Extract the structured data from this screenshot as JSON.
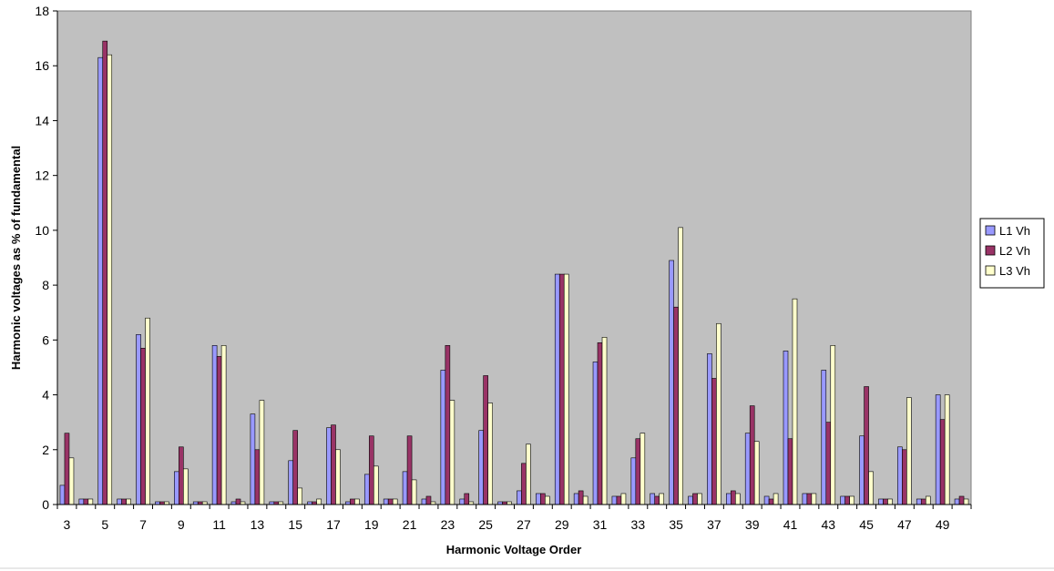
{
  "chart_data": {
    "type": "bar",
    "title": "",
    "xlabel": "Harmonic Voltage Order",
    "ylabel": "Harmonic voltages as % of fundamental",
    "ylim": [
      0,
      18
    ],
    "yticks": [
      0,
      2,
      4,
      6,
      8,
      10,
      12,
      14,
      16,
      18
    ],
    "grid": false,
    "legend_position": "right",
    "plot_background": "#c0c0c0",
    "categories": [
      3,
      4,
      5,
      6,
      7,
      8,
      9,
      10,
      11,
      12,
      13,
      14,
      15,
      16,
      17,
      18,
      19,
      20,
      21,
      22,
      23,
      24,
      25,
      26,
      27,
      28,
      29,
      30,
      31,
      32,
      33,
      34,
      35,
      36,
      37,
      38,
      39,
      40,
      41,
      42,
      43,
      44,
      45,
      46,
      47,
      48,
      49,
      50
    ],
    "x_tick_labels": [
      "3",
      "5",
      "7",
      "9",
      "11",
      "13",
      "15",
      "17",
      "19",
      "21",
      "23",
      "25",
      "27",
      "29",
      "31",
      "33",
      "35",
      "37",
      "39",
      "41",
      "43",
      "45",
      "47",
      "49"
    ],
    "series": [
      {
        "name": "L1 Vh",
        "color": "#9999ff",
        "values": [
          0.7,
          0.2,
          16.3,
          0.2,
          6.2,
          0.1,
          1.2,
          0.1,
          5.8,
          0.1,
          3.3,
          0.1,
          1.6,
          0.1,
          2.8,
          0.1,
          1.1,
          0.2,
          1.2,
          0.2,
          4.9,
          0.2,
          2.7,
          0.1,
          0.5,
          0.4,
          8.4,
          0.4,
          5.2,
          0.3,
          1.7,
          0.4,
          8.9,
          0.3,
          5.5,
          0.4,
          2.6,
          0.3,
          5.6,
          0.4,
          4.9,
          0.3,
          2.5,
          0.2,
          2.1,
          0.2,
          4.0,
          0.2
        ]
      },
      {
        "name": "L2 Vh",
        "color": "#993366",
        "values": [
          2.6,
          0.2,
          16.9,
          0.2,
          5.7,
          0.1,
          2.1,
          0.1,
          5.4,
          0.2,
          2.0,
          0.1,
          2.7,
          0.1,
          2.9,
          0.2,
          2.5,
          0.2,
          2.5,
          0.3,
          5.8,
          0.4,
          4.7,
          0.1,
          1.5,
          0.4,
          8.4,
          0.5,
          5.9,
          0.3,
          2.4,
          0.3,
          7.2,
          0.4,
          4.6,
          0.5,
          3.6,
          0.2,
          2.4,
          0.4,
          3.0,
          0.3,
          4.3,
          0.2,
          2.0,
          0.2,
          3.1,
          0.3
        ]
      },
      {
        "name": "L3 Vh",
        "color": "#ffffcc",
        "values": [
          1.7,
          0.2,
          16.4,
          0.2,
          6.8,
          0.1,
          1.3,
          0.1,
          5.8,
          0.1,
          3.8,
          0.1,
          0.6,
          0.2,
          2.0,
          0.2,
          1.4,
          0.2,
          0.9,
          0.1,
          3.8,
          0.1,
          3.7,
          0.1,
          2.2,
          0.3,
          8.4,
          0.3,
          6.1,
          0.4,
          2.6,
          0.4,
          10.1,
          0.4,
          6.6,
          0.4,
          2.3,
          0.4,
          7.5,
          0.4,
          5.8,
          0.3,
          1.2,
          0.2,
          3.9,
          0.3,
          4.0,
          0.2
        ]
      }
    ]
  }
}
